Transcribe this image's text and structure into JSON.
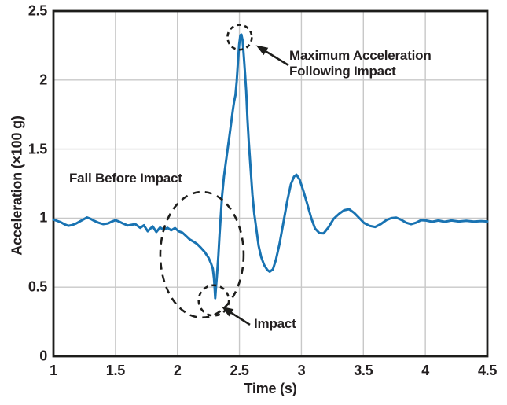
{
  "figure": {
    "background": "#ffffff",
    "line_color": "#1973b2",
    "grid_color": "#c8c8c8",
    "axis_color": "#1d1d1b",
    "text_color": "#231f20"
  },
  "chart_data": {
    "type": "line",
    "title": "",
    "xlabel": "Time (s)",
    "ylabel": "Acceleration (×100 g)",
    "xlim": [
      1,
      4.5
    ],
    "ylim": [
      0,
      2.5
    ],
    "x_tick_values": [
      1,
      1.5,
      2,
      2.5,
      3,
      3.5,
      4,
      4.5
    ],
    "x_tick_labels": [
      "1",
      "1.5",
      "2",
      "2.5",
      "3",
      "3.5",
      "4",
      "4.5"
    ],
    "y_tick_values": [
      0,
      0.5,
      1,
      1.5,
      2,
      2.5
    ],
    "y_tick_labels": [
      "0",
      "0.5",
      "1",
      "1.5",
      "2",
      "2.5"
    ],
    "grid": true,
    "legend": false,
    "series": [
      {
        "name": "Acceleration",
        "color": "#1973b2",
        "points": [
          [
            1.0,
            0.99
          ],
          [
            1.03,
            0.98
          ],
          [
            1.06,
            0.97
          ],
          [
            1.09,
            0.955
          ],
          [
            1.12,
            0.945
          ],
          [
            1.15,
            0.95
          ],
          [
            1.18,
            0.96
          ],
          [
            1.21,
            0.975
          ],
          [
            1.24,
            0.99
          ],
          [
            1.27,
            1.005
          ],
          [
            1.3,
            0.995
          ],
          [
            1.33,
            0.98
          ],
          [
            1.36,
            0.968
          ],
          [
            1.4,
            0.957
          ],
          [
            1.44,
            0.962
          ],
          [
            1.47,
            0.975
          ],
          [
            1.5,
            0.985
          ],
          [
            1.53,
            0.975
          ],
          [
            1.56,
            0.962
          ],
          [
            1.6,
            0.947
          ],
          [
            1.63,
            0.952
          ],
          [
            1.66,
            0.957
          ],
          [
            1.7,
            0.93
          ],
          [
            1.73,
            0.948
          ],
          [
            1.76,
            0.905
          ],
          [
            1.8,
            0.94
          ],
          [
            1.83,
            0.9
          ],
          [
            1.86,
            0.932
          ],
          [
            1.89,
            0.915
          ],
          [
            1.92,
            0.93
          ],
          [
            1.95,
            0.912
          ],
          [
            1.98,
            0.928
          ],
          [
            2.01,
            0.905
          ],
          [
            2.04,
            0.895
          ],
          [
            2.07,
            0.87
          ],
          [
            2.1,
            0.845
          ],
          [
            2.13,
            0.83
          ],
          [
            2.16,
            0.812
          ],
          [
            2.19,
            0.785
          ],
          [
            2.22,
            0.755
          ],
          [
            2.25,
            0.715
          ],
          [
            2.27,
            0.675
          ],
          [
            2.285,
            0.635
          ],
          [
            2.295,
            0.565
          ],
          [
            2.3,
            0.5
          ],
          [
            2.305,
            0.42
          ],
          [
            2.312,
            0.51
          ],
          [
            2.32,
            0.6
          ],
          [
            2.33,
            0.73
          ],
          [
            2.34,
            0.88
          ],
          [
            2.35,
            1.02
          ],
          [
            2.36,
            1.16
          ],
          [
            2.375,
            1.3
          ],
          [
            2.39,
            1.4
          ],
          [
            2.405,
            1.5
          ],
          [
            2.42,
            1.6
          ],
          [
            2.435,
            1.7
          ],
          [
            2.448,
            1.79
          ],
          [
            2.458,
            1.845
          ],
          [
            2.468,
            1.89
          ],
          [
            2.478,
            1.99
          ],
          [
            2.488,
            2.13
          ],
          [
            2.498,
            2.26
          ],
          [
            2.508,
            2.325
          ],
          [
            2.516,
            2.33
          ],
          [
            2.526,
            2.285
          ],
          [
            2.536,
            2.17
          ],
          [
            2.545,
            2.05
          ],
          [
            2.555,
            1.92
          ],
          [
            2.565,
            1.72
          ],
          [
            2.575,
            1.56
          ],
          [
            2.59,
            1.36
          ],
          [
            2.605,
            1.17
          ],
          [
            2.62,
            1.03
          ],
          [
            2.635,
            0.93
          ],
          [
            2.655,
            0.8
          ],
          [
            2.675,
            0.72
          ],
          [
            2.7,
            0.66
          ],
          [
            2.725,
            0.625
          ],
          [
            2.745,
            0.612
          ],
          [
            2.77,
            0.63
          ],
          [
            2.795,
            0.7
          ],
          [
            2.825,
            0.82
          ],
          [
            2.855,
            0.97
          ],
          [
            2.885,
            1.12
          ],
          [
            2.915,
            1.245
          ],
          [
            2.94,
            1.3
          ],
          [
            2.96,
            1.315
          ],
          [
            2.985,
            1.28
          ],
          [
            3.015,
            1.2
          ],
          [
            3.045,
            1.11
          ],
          [
            3.08,
            1.0
          ],
          [
            3.11,
            0.925
          ],
          [
            3.145,
            0.892
          ],
          [
            3.18,
            0.89
          ],
          [
            3.22,
            0.935
          ],
          [
            3.26,
            0.995
          ],
          [
            3.305,
            1.032
          ],
          [
            3.345,
            1.057
          ],
          [
            3.385,
            1.065
          ],
          [
            3.425,
            1.038
          ],
          [
            3.465,
            1.002
          ],
          [
            3.505,
            0.965
          ],
          [
            3.55,
            0.944
          ],
          [
            3.595,
            0.936
          ],
          [
            3.64,
            0.957
          ],
          [
            3.685,
            0.986
          ],
          [
            3.725,
            1.0
          ],
          [
            3.765,
            1.004
          ],
          [
            3.805,
            0.988
          ],
          [
            3.845,
            0.967
          ],
          [
            3.885,
            0.956
          ],
          [
            3.925,
            0.967
          ],
          [
            3.965,
            0.985
          ],
          [
            4.005,
            0.983
          ],
          [
            4.055,
            0.974
          ],
          [
            4.105,
            0.983
          ],
          [
            4.155,
            0.974
          ],
          [
            4.21,
            0.983
          ],
          [
            4.27,
            0.976
          ],
          [
            4.33,
            0.981
          ],
          [
            4.39,
            0.975
          ],
          [
            4.45,
            0.979
          ],
          [
            4.5,
            0.976
          ]
        ]
      }
    ],
    "annotations": {
      "fall_label": "Fall Before Impact",
      "max_label": "Maximum Acceleration\nFollowing Impact",
      "impact_label": "Impact",
      "shapes": [
        {
          "kind": "ellipse",
          "marks": "fall-before-impact",
          "cx": 2.198,
          "cy": 0.735,
          "rx": 0.336,
          "ry": 0.455,
          "dash": [
            9,
            7
          ]
        },
        {
          "kind": "ellipse",
          "marks": "impact",
          "cx": 2.293,
          "cy": 0.404,
          "rx": 0.122,
          "ry": 0.11,
          "dash": [
            6,
            5
          ]
        },
        {
          "kind": "ellipse",
          "marks": "maximum-acceleration",
          "cx": 2.502,
          "cy": 2.31,
          "rx": 0.098,
          "ry": 0.09,
          "dash": [
            5.5,
            4.5
          ]
        }
      ],
      "arrows": [
        {
          "points_to": "maximum-acceleration",
          "from": [
            2.896,
            2.107
          ],
          "to": [
            2.633,
            2.252
          ]
        },
        {
          "points_to": "impact",
          "from": [
            2.585,
            0.228
          ],
          "to": [
            2.355,
            0.36
          ]
        }
      ]
    }
  }
}
